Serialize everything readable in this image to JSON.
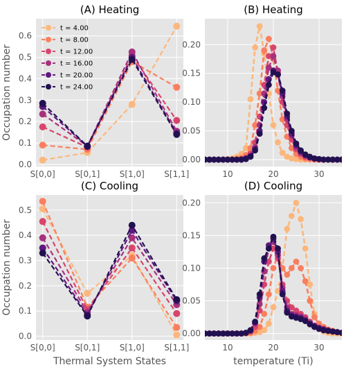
{
  "series_colors": [
    "#fcb77c",
    "#fa7f5e",
    "#d8456c",
    "#a6317d",
    "#5f187f",
    "#221150"
  ],
  "chart_data": [
    {
      "type": "line",
      "title": "(A) Heating",
      "xlabel": "",
      "ylabel": "Occupation number",
      "categories": [
        "S[0,0]",
        "S[0,1]",
        "S[1,0]",
        "S[1,1]"
      ],
      "ylim": [
        -0.01,
        0.68
      ],
      "yticks": [
        0.0,
        0.1,
        0.2,
        0.3,
        0.4,
        0.5,
        0.6
      ],
      "ytick_labels": [
        "0.0",
        "0.1",
        "0.2",
        "0.3",
        "0.4",
        "0.5",
        "0.6"
      ],
      "grid": true,
      "legend_position": "top-left",
      "series": [
        {
          "name": "t = 4.00",
          "values": [
            0.02,
            0.055,
            0.28,
            0.645
          ]
        },
        {
          "name": "t = 8.00",
          "values": [
            0.09,
            0.07,
            0.48,
            0.36
          ]
        },
        {
          "name": "t = 12.00",
          "values": [
            0.175,
            0.08,
            0.51,
            0.205
          ]
        },
        {
          "name": "t = 16.00",
          "values": [
            0.235,
            0.085,
            0.525,
            0.155
          ]
        },
        {
          "name": "t = 20.00",
          "values": [
            0.27,
            0.085,
            0.5,
            0.145
          ]
        },
        {
          "name": "t = 24.00",
          "values": [
            0.285,
            0.085,
            0.49,
            0.14
          ]
        }
      ]
    },
    {
      "type": "line",
      "title": "(B) Heating",
      "xlabel": "",
      "ylabel": "",
      "xlim": [
        5,
        35
      ],
      "xticks": [
        10,
        20,
        30
      ],
      "xtick_labels": [
        "10",
        "20",
        "30"
      ],
      "ylim": [
        -0.012,
        0.245
      ],
      "yticks": [
        0.0,
        0.05,
        0.1,
        0.15,
        0.2
      ],
      "ytick_labels": [
        "0.00",
        "0.05",
        "0.10",
        "0.15",
        "0.20"
      ],
      "grid": true,
      "series": [
        {
          "name": "t = 4.00",
          "x": [
            5,
            6,
            7,
            8,
            9,
            10,
            11,
            12,
            13,
            14,
            15,
            16,
            17,
            18,
            19,
            20,
            21,
            22,
            23,
            24,
            25,
            26,
            27,
            28,
            29,
            30,
            31,
            32,
            33,
            34,
            35
          ],
          "values": [
            0,
            0,
            0,
            0,
            0,
            0.001,
            0.002,
            0.005,
            0.01,
            0.02,
            0.105,
            0.195,
            0.232,
            0.185,
            0.115,
            0.06,
            0.03,
            0.012,
            0.005,
            0.002,
            0.001,
            0,
            0,
            0,
            0,
            0,
            0,
            0,
            0,
            0,
            0
          ]
        },
        {
          "name": "t = 8.00",
          "x": [
            5,
            6,
            7,
            8,
            9,
            10,
            11,
            12,
            13,
            14,
            15,
            16,
            17,
            18,
            19,
            20,
            21,
            22,
            23,
            24,
            25,
            26,
            27,
            28,
            29,
            30,
            31,
            32,
            33,
            34,
            35
          ],
          "values": [
            0,
            0,
            0,
            0,
            0,
            0,
            0,
            0.001,
            0.003,
            0.008,
            0.02,
            0.06,
            0.115,
            0.19,
            0.21,
            0.175,
            0.12,
            0.07,
            0.04,
            0.02,
            0.01,
            0.005,
            0.002,
            0.001,
            0,
            0,
            0,
            0,
            0,
            0,
            0
          ]
        },
        {
          "name": "t = 12.00",
          "x": [
            5,
            6,
            7,
            8,
            9,
            10,
            11,
            12,
            13,
            14,
            15,
            16,
            17,
            18,
            19,
            20,
            21,
            22,
            23,
            24,
            25,
            26,
            27,
            28,
            29,
            30,
            31,
            32,
            33,
            34,
            35
          ],
          "values": [
            0,
            0,
            0,
            0,
            0,
            0,
            0,
            0,
            0.001,
            0.003,
            0.01,
            0.03,
            0.075,
            0.13,
            0.18,
            0.195,
            0.15,
            0.1,
            0.06,
            0.035,
            0.018,
            0.01,
            0.005,
            0.003,
            0.001,
            0,
            0,
            0,
            0,
            0,
            0
          ]
        },
        {
          "name": "t = 16.00",
          "x": [
            5,
            6,
            7,
            8,
            9,
            10,
            11,
            12,
            13,
            14,
            15,
            16,
            17,
            18,
            19,
            20,
            21,
            22,
            23,
            24,
            25,
            26,
            27,
            28,
            29,
            30,
            31,
            32,
            33,
            34,
            35
          ],
          "values": [
            0,
            0,
            0,
            0,
            0,
            0,
            0,
            0,
            0,
            0.002,
            0.007,
            0.022,
            0.06,
            0.115,
            0.16,
            0.18,
            0.155,
            0.11,
            0.07,
            0.042,
            0.022,
            0.012,
            0.007,
            0.004,
            0.002,
            0.001,
            0,
            0,
            0,
            0,
            0
          ]
        },
        {
          "name": "t = 20.00",
          "x": [
            5,
            6,
            7,
            8,
            9,
            10,
            11,
            12,
            13,
            14,
            15,
            16,
            17,
            18,
            19,
            20,
            21,
            22,
            23,
            24,
            25,
            26,
            27,
            28,
            29,
            30,
            31,
            32,
            33,
            34,
            35
          ],
          "values": [
            0,
            0,
            0,
            0,
            0,
            0,
            0,
            0,
            0,
            0.002,
            0.006,
            0.018,
            0.05,
            0.1,
            0.14,
            0.155,
            0.148,
            0.115,
            0.075,
            0.045,
            0.025,
            0.014,
            0.008,
            0.004,
            0.002,
            0.001,
            0,
            0,
            0,
            0,
            0
          ]
        },
        {
          "name": "t = 24.00",
          "x": [
            5,
            6,
            7,
            8,
            9,
            10,
            11,
            12,
            13,
            14,
            15,
            16,
            17,
            18,
            19,
            20,
            21,
            22,
            23,
            24,
            25,
            26,
            27,
            28,
            29,
            30,
            31,
            32,
            33,
            34,
            35
          ],
          "values": [
            0,
            0,
            0,
            0,
            0,
            0,
            0,
            0,
            0,
            0.001,
            0.005,
            0.016,
            0.045,
            0.09,
            0.13,
            0.152,
            0.148,
            0.12,
            0.08,
            0.05,
            0.028,
            0.016,
            0.009,
            0.005,
            0.002,
            0.001,
            0,
            0,
            0,
            0,
            0
          ]
        }
      ]
    },
    {
      "type": "line",
      "title": "(C) Cooling",
      "xlabel": "Thermal System States",
      "ylabel": "Occupation number",
      "categories": [
        "S[0,0]",
        "S[0,1]",
        "S[1,0]",
        "S[1,1]"
      ],
      "ylim": [
        -0.015,
        0.56
      ],
      "yticks": [
        0.0,
        0.1,
        0.2,
        0.3,
        0.4,
        0.5
      ],
      "ytick_labels": [
        "0.0",
        "0.1",
        "0.2",
        "0.3",
        "0.4",
        "0.5"
      ],
      "grid": true,
      "series": [
        {
          "name": "t = 4.00",
          "values": [
            0.505,
            0.17,
            0.32,
            0.005
          ]
        },
        {
          "name": "t = 8.00",
          "values": [
            0.535,
            0.115,
            0.31,
            0.035
          ]
        },
        {
          "name": "t = 12.00",
          "values": [
            0.455,
            0.105,
            0.35,
            0.09
          ]
        },
        {
          "name": "t = 16.00",
          "values": [
            0.39,
            0.095,
            0.39,
            0.125
          ]
        },
        {
          "name": "t = 20.00",
          "values": [
            0.35,
            0.085,
            0.42,
            0.14
          ]
        },
        {
          "name": "t = 24.00",
          "values": [
            0.33,
            0.08,
            0.44,
            0.145
          ]
        }
      ]
    },
    {
      "type": "line",
      "title": "(D) Cooling",
      "xlabel": "temperature (Ti)",
      "ylabel": "",
      "xlim": [
        5,
        35
      ],
      "xticks": [
        10,
        20,
        30
      ],
      "xtick_labels": [
        "10",
        "20",
        "30"
      ],
      "ylim": [
        -0.01,
        0.212
      ],
      "yticks": [
        0.0,
        0.05,
        0.1,
        0.15,
        0.2
      ],
      "ytick_labels": [
        "0.00",
        "0.05",
        "0.10",
        "0.15",
        "0.20"
      ],
      "grid": true,
      "series": [
        {
          "name": "t = 4.00",
          "x": [
            5,
            6,
            7,
            8,
            9,
            10,
            11,
            12,
            13,
            14,
            15,
            16,
            17,
            18,
            19,
            20,
            21,
            22,
            23,
            24,
            25,
            26,
            27,
            28,
            29,
            30,
            31,
            32,
            33,
            34,
            35
          ],
          "values": [
            0,
            0,
            0,
            0,
            0,
            0,
            0,
            0,
            0,
            0,
            0,
            0.001,
            0.002,
            0.005,
            0.015,
            0.04,
            0.065,
            0.1,
            0.16,
            0.18,
            0.2,
            0.175,
            0.13,
            0.075,
            0.03,
            0.01,
            0.003,
            0.001,
            0,
            0,
            0
          ]
        },
        {
          "name": "t = 8.00",
          "x": [
            5,
            6,
            7,
            8,
            9,
            10,
            11,
            12,
            13,
            14,
            15,
            16,
            17,
            18,
            19,
            20,
            21,
            22,
            23,
            24,
            25,
            26,
            27,
            28,
            29,
            30,
            31,
            32,
            33,
            34,
            35
          ],
          "values": [
            0,
            0,
            0,
            0,
            0,
            0,
            0,
            0,
            0,
            0,
            0.001,
            0.004,
            0.01,
            0.03,
            0.06,
            0.1,
            0.12,
            0.1,
            0.09,
            0.1,
            0.11,
            0.1,
            0.08,
            0.05,
            0.025,
            0.015,
            0.01,
            0.006,
            0.004,
            0.002,
            0.001
          ]
        },
        {
          "name": "t = 12.00",
          "x": [
            5,
            6,
            7,
            8,
            9,
            10,
            11,
            12,
            13,
            14,
            15,
            16,
            17,
            18,
            19,
            20,
            21,
            22,
            23,
            24,
            25,
            26,
            27,
            28,
            29,
            30,
            31,
            32,
            33,
            34,
            35
          ],
          "values": [
            0,
            0,
            0,
            0,
            0,
            0,
            0,
            0,
            0,
            0.001,
            0.003,
            0.01,
            0.035,
            0.075,
            0.11,
            0.13,
            0.115,
            0.075,
            0.05,
            0.04,
            0.035,
            0.03,
            0.025,
            0.018,
            0.012,
            0.008,
            0.006,
            0.004,
            0.003,
            0.002,
            0.001
          ]
        },
        {
          "name": "t = 16.00",
          "x": [
            5,
            6,
            7,
            8,
            9,
            10,
            11,
            12,
            13,
            14,
            15,
            16,
            17,
            18,
            19,
            20,
            21,
            22,
            23,
            24,
            25,
            26,
            27,
            28,
            29,
            30,
            31,
            32,
            33,
            34,
            35
          ],
          "values": [
            0,
            0,
            0,
            0,
            0,
            0,
            0,
            0,
            0,
            0.001,
            0.004,
            0.015,
            0.045,
            0.095,
            0.13,
            0.14,
            0.12,
            0.07,
            0.04,
            0.03,
            0.028,
            0.026,
            0.022,
            0.016,
            0.012,
            0.009,
            0.007,
            0.005,
            0.003,
            0.002,
            0.001
          ]
        },
        {
          "name": "t = 20.00",
          "x": [
            5,
            6,
            7,
            8,
            9,
            10,
            11,
            12,
            13,
            14,
            15,
            16,
            17,
            18,
            19,
            20,
            21,
            22,
            23,
            24,
            25,
            26,
            27,
            28,
            29,
            30,
            31,
            32,
            33,
            34,
            35
          ],
          "values": [
            0,
            0,
            0,
            0,
            0,
            0,
            0,
            0,
            0,
            0.001,
            0.005,
            0.017,
            0.055,
            0.11,
            0.135,
            0.145,
            0.125,
            0.065,
            0.035,
            0.028,
            0.026,
            0.024,
            0.02,
            0.015,
            0.011,
            0.008,
            0.006,
            0.004,
            0.003,
            0.002,
            0.001
          ]
        },
        {
          "name": "t = 24.00",
          "x": [
            5,
            6,
            7,
            8,
            9,
            10,
            11,
            12,
            13,
            14,
            15,
            16,
            17,
            18,
            19,
            20,
            21,
            22,
            23,
            24,
            25,
            26,
            27,
            28,
            29,
            30,
            31,
            32,
            33,
            34,
            35
          ],
          "values": [
            0,
            0,
            0,
            0,
            0,
            0,
            0,
            0,
            0,
            0.001,
            0.005,
            0.018,
            0.06,
            0.115,
            0.13,
            0.148,
            0.13,
            0.06,
            0.032,
            0.026,
            0.024,
            0.022,
            0.019,
            0.014,
            0.01,
            0.007,
            0.005,
            0.004,
            0.003,
            0.002,
            0.001
          ]
        }
      ]
    }
  ]
}
